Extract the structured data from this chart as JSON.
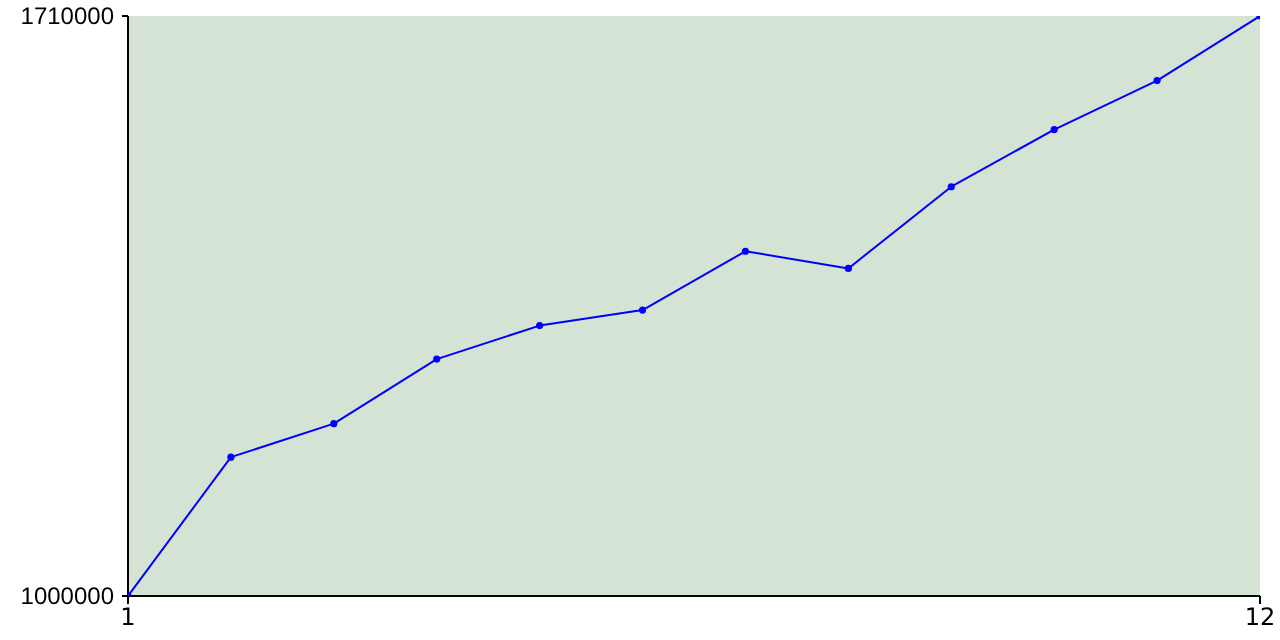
{
  "chart_data": {
    "type": "line",
    "x": [
      1,
      2,
      3,
      4,
      5,
      6,
      7,
      8,
      9,
      10,
      11,
      12
    ],
    "series": [
      {
        "color": "#0000ff",
        "values": [
          1000000,
          1170000,
          1211000,
          1290000,
          1331000,
          1350000,
          1422000,
          1401000,
          1501000,
          1571000,
          1631000,
          1710000
        ]
      }
    ],
    "xlim": [
      1,
      12
    ],
    "xticks": [
      1,
      12
    ],
    "ylim": [
      1000000,
      1710000
    ],
    "yticks": [
      1000000,
      1710000
    ],
    "grid": false,
    "legend": false,
    "marker": "circle",
    "line_style": "solid"
  }
}
